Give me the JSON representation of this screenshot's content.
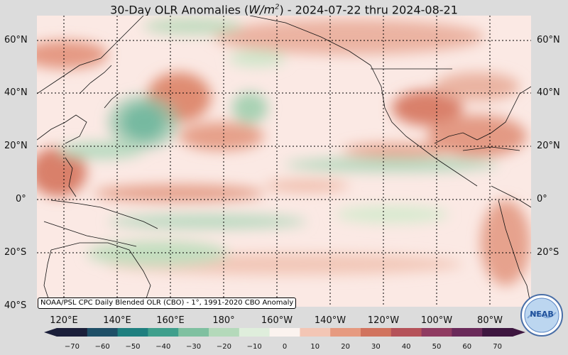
{
  "title": {
    "prefix": "30-Day OLR Anomalies (",
    "unit_base": "W/m",
    "unit_exp": "2",
    "suffix": ") - 2024-07-22 thru 2024-08-21"
  },
  "credit": "NOAA/PSL CPC Daily Blended OLR (CBO) - 1°, 1991-2020 CBO Anomaly",
  "logo_text": "NEAB",
  "lat_labels": [
    "60°N",
    "40°N",
    "20°N",
    "0°",
    "20°S",
    "40°S"
  ],
  "lon_labels": [
    "120°E",
    "140°E",
    "160°E",
    "180°",
    "160°W",
    "140°W",
    "120°W",
    "100°W",
    "80°W"
  ],
  "colorbar": {
    "ticks": [
      "−70",
      "−60",
      "−50",
      "−40",
      "−30",
      "−20",
      "−10",
      "0",
      "10",
      "20",
      "30",
      "40",
      "50",
      "60",
      "70"
    ],
    "range": [
      -75,
      75
    ],
    "colors": [
      "#1b1f3a",
      "#1f4f67",
      "#1f7f7f",
      "#3f9f8c",
      "#7fc0a0",
      "#b4d9ba",
      "#dfeedc",
      "#fbf3ef",
      "#f3c6b5",
      "#e69a80",
      "#d1735e",
      "#b55259",
      "#8f3b61",
      "#6a2a5a",
      "#3e1740"
    ]
  },
  "colors": {
    "background": "#dcdcdc",
    "base_anomaly": "#fbe9e4"
  }
}
